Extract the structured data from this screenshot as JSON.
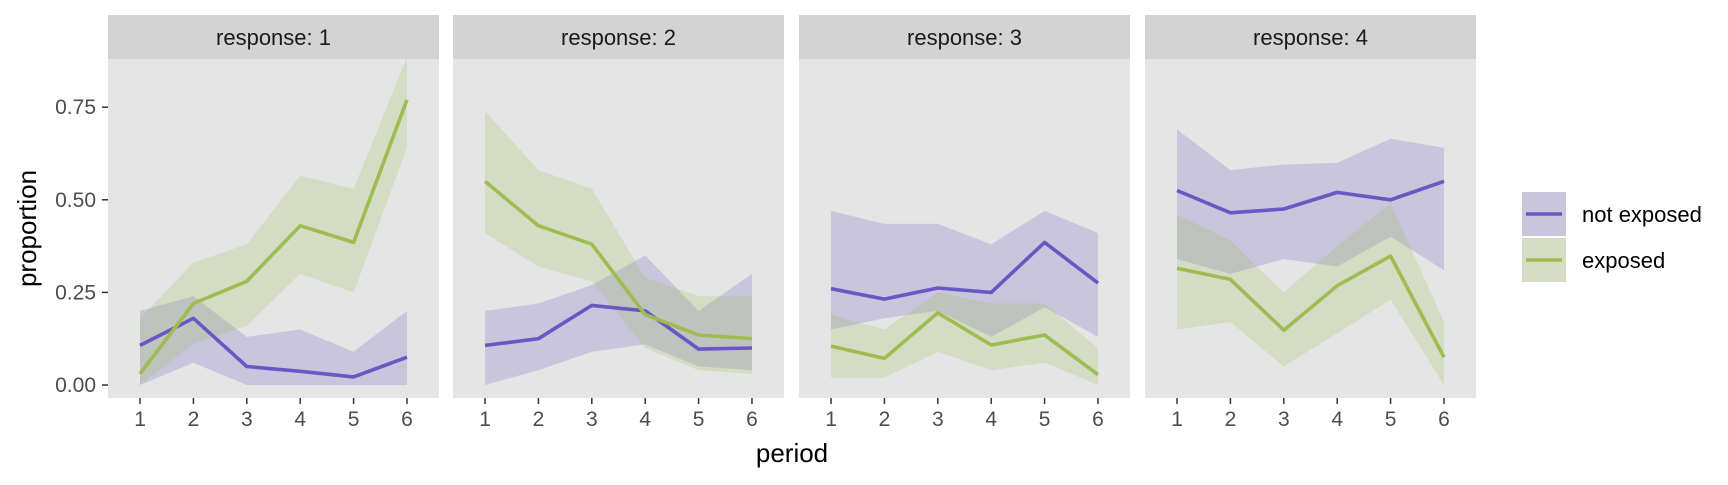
{
  "colors": {
    "panel_bg": "#e5e5e5",
    "strip_bg": "#d3d3d3",
    "tick": "#333333",
    "not_exposed": "#6a57c4",
    "exposed": "#9dbd53"
  },
  "chart_data": {
    "type": "line",
    "facet_by": "response",
    "xlabel": "period",
    "ylabel": "proportion",
    "x": [
      1,
      2,
      3,
      4,
      5,
      6
    ],
    "xlim": [
      0.4,
      6.6
    ],
    "ylim": [
      -0.035,
      0.88
    ],
    "yticks": [
      0,
      0.25,
      0.5,
      0.75
    ],
    "ytick_labels": [
      "0.00",
      "0.25",
      "0.50",
      "0.75"
    ],
    "legend": {
      "position": "right",
      "entries": [
        {
          "key": "not_exposed",
          "label": "not exposed"
        },
        {
          "key": "exposed",
          "label": "exposed"
        }
      ]
    },
    "panels": [
      {
        "label": "response: 1",
        "series": [
          {
            "key": "not_exposed",
            "name": "not exposed",
            "values": [
              0.107,
              0.18,
              0.05,
              0.037,
              0.022,
              0.075
            ],
            "lower": [
              0.0,
              0.06,
              0.0,
              0.0,
              0.0,
              0.0
            ],
            "upper": [
              0.2,
              0.24,
              0.13,
              0.15,
              0.09,
              0.2
            ]
          },
          {
            "key": "exposed",
            "name": "exposed",
            "values": [
              0.03,
              0.22,
              0.28,
              0.43,
              0.385,
              0.77
            ],
            "lower": [
              0.0,
              0.11,
              0.16,
              0.3,
              0.25,
              0.64
            ],
            "upper": [
              0.18,
              0.33,
              0.38,
              0.565,
              0.53,
              0.885
            ]
          }
        ]
      },
      {
        "label": "response: 2",
        "series": [
          {
            "key": "not_exposed",
            "name": "not exposed",
            "values": [
              0.107,
              0.125,
              0.215,
              0.2,
              0.097,
              0.1
            ],
            "lower": [
              0.0,
              0.04,
              0.09,
              0.11,
              0.05,
              0.04
            ],
            "upper": [
              0.2,
              0.22,
              0.27,
              0.35,
              0.2,
              0.3
            ]
          },
          {
            "key": "exposed",
            "name": "exposed",
            "values": [
              0.55,
              0.43,
              0.38,
              0.19,
              0.135,
              0.125
            ],
            "lower": [
              0.41,
              0.32,
              0.28,
              0.1,
              0.04,
              0.03
            ],
            "upper": [
              0.74,
              0.58,
              0.53,
              0.29,
              0.24,
              0.24
            ]
          }
        ]
      },
      {
        "label": "response: 3",
        "series": [
          {
            "key": "not_exposed",
            "name": "not exposed",
            "values": [
              0.26,
              0.232,
              0.262,
              0.25,
              0.385,
              0.275
            ],
            "lower": [
              0.15,
              0.18,
              0.2,
              0.13,
              0.21,
              0.13
            ],
            "upper": [
              0.47,
              0.435,
              0.435,
              0.38,
              0.47,
              0.41
            ]
          },
          {
            "key": "exposed",
            "name": "exposed",
            "values": [
              0.105,
              0.072,
              0.195,
              0.108,
              0.135,
              0.028
            ],
            "lower": [
              0.02,
              0.02,
              0.09,
              0.04,
              0.06,
              0.0
            ],
            "upper": [
              0.19,
              0.15,
              0.25,
              0.22,
              0.22,
              0.1
            ]
          }
        ]
      },
      {
        "label": "response: 4",
        "series": [
          {
            "key": "not_exposed",
            "name": "not exposed",
            "values": [
              0.525,
              0.465,
              0.475,
              0.52,
              0.5,
              0.55
            ],
            "lower": [
              0.34,
              0.3,
              0.34,
              0.32,
              0.4,
              0.31
            ],
            "upper": [
              0.69,
              0.58,
              0.595,
              0.6,
              0.665,
              0.64
            ]
          },
          {
            "key": "exposed",
            "name": "exposed",
            "values": [
              0.315,
              0.285,
              0.148,
              0.268,
              0.348,
              0.075
            ],
            "lower": [
              0.15,
              0.17,
              0.05,
              0.14,
              0.23,
              0.0
            ],
            "upper": [
              0.46,
              0.39,
              0.25,
              0.375,
              0.49,
              0.17
            ]
          }
        ]
      }
    ]
  }
}
